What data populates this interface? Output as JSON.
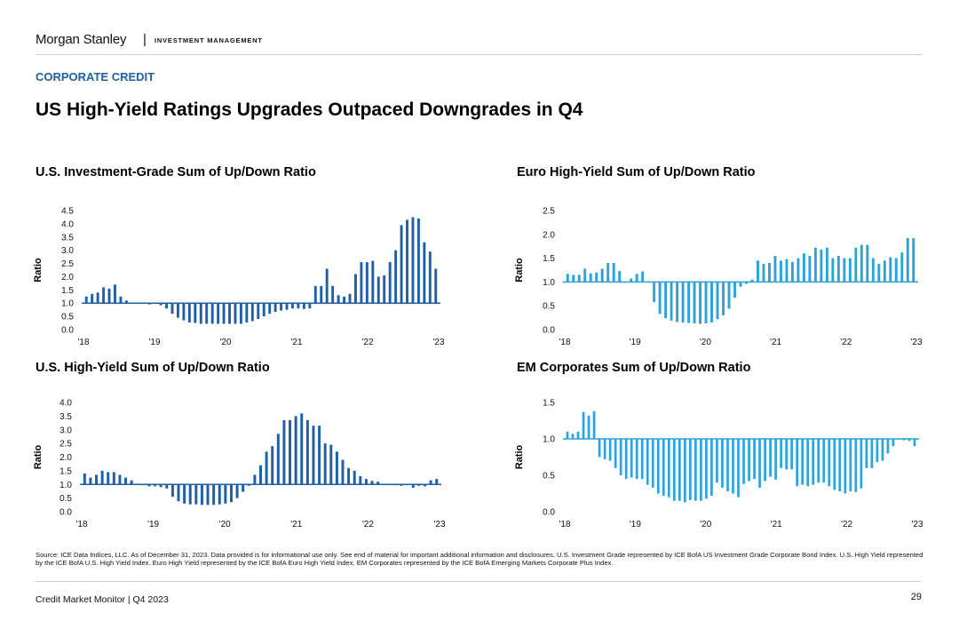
{
  "header": {
    "brand": "Morgan Stanley",
    "separator": "|",
    "division": "INVESTMENT MANAGEMENT"
  },
  "section_label": "CORPORATE CREDIT",
  "page_title": "US High-Yield Ratings Upgrades Outpaced Downgrades in Q4",
  "footer": {
    "source": "Source: ICE Data Indices, LLC. As of December 31, 2023. Data provided is for informational use only. See end of material for important additional information and disclosures. U.S. Investment Grade represented by ICE BofA US Investment Grade Corporate Bond Index. U.S. High Yield represented by the ICE BofA U.S. High Yield Index. Euro High Yield represented by the ICE BofA Euro High Yield Index. EM Corporates represented by the ICE BofA Emerging Markets Corporate Plus Index.",
    "publication": "Credit Market Monitor | Q4 2023",
    "page_number": "29"
  },
  "chart_data": [
    {
      "id": "ig",
      "type": "bar",
      "title": "U.S. Investment-Grade Sum of Up/Down Ratio",
      "ylabel": "Ratio",
      "xlabel": "",
      "baseline": 1.0,
      "ylim": [
        0,
        4.5
      ],
      "yticks": [
        "0.0",
        "0.5",
        "1.0",
        "1.5",
        "2.0",
        "2.5",
        "3.0",
        "3.5",
        "4.0",
        "4.5"
      ],
      "xticks": [
        "'18",
        "'19",
        "'20",
        "'21",
        "'22",
        "'23"
      ],
      "color": "#1f5fa6",
      "values": [
        1.25,
        1.35,
        1.4,
        1.6,
        1.55,
        1.7,
        1.25,
        1.1,
        1.0,
        1.0,
        1.0,
        0.95,
        1.0,
        0.92,
        0.8,
        0.6,
        0.45,
        0.35,
        0.27,
        0.25,
        0.22,
        0.22,
        0.22,
        0.22,
        0.22,
        0.22,
        0.22,
        0.22,
        0.27,
        0.32,
        0.4,
        0.5,
        0.6,
        0.67,
        0.72,
        0.75,
        0.8,
        0.8,
        0.78,
        0.8,
        1.65,
        1.65,
        2.3,
        1.65,
        1.3,
        1.25,
        1.35,
        2.1,
        2.55,
        2.55,
        2.6,
        2.0,
        2.05,
        2.55,
        3.0,
        3.95,
        4.15,
        4.25,
        4.2,
        3.3,
        2.95,
        2.3
      ]
    },
    {
      "id": "euro",
      "type": "bar",
      "title": "Euro High-Yield Sum of Up/Down Ratio",
      "ylabel": "Ratio",
      "xlabel": "",
      "baseline": 1.0,
      "ylim": [
        0,
        2.5
      ],
      "yticks": [
        "0.0",
        "0.5",
        "1.0",
        "1.5",
        "2.0",
        "2.5"
      ],
      "xticks": [
        "'18",
        "'19",
        "'20",
        "'21",
        "'22",
        "'23"
      ],
      "color": "#2ea3da",
      "values": [
        1.17,
        1.15,
        1.15,
        1.28,
        1.18,
        1.2,
        1.28,
        1.4,
        1.4,
        1.23,
        1.0,
        1.07,
        1.17,
        1.22,
        1.0,
        0.58,
        0.33,
        0.24,
        0.19,
        0.16,
        0.15,
        0.14,
        0.13,
        0.12,
        0.13,
        0.15,
        0.22,
        0.3,
        0.44,
        0.67,
        0.9,
        0.96,
        1.05,
        1.45,
        1.38,
        1.4,
        1.55,
        1.45,
        1.48,
        1.42,
        1.5,
        1.6,
        1.55,
        1.72,
        1.68,
        1.72,
        1.5,
        1.55,
        1.5,
        1.5,
        1.72,
        1.78,
        1.78,
        1.5,
        1.38,
        1.45,
        1.52,
        1.5,
        1.62,
        1.92,
        1.92
      ]
    },
    {
      "id": "hy",
      "type": "bar",
      "title": "U.S. High-Yield Sum of Up/Down Ratio",
      "ylabel": "Ratio",
      "xlabel": "",
      "baseline": 1.0,
      "ylim": [
        0,
        4.0
      ],
      "yticks": [
        "0.0",
        "0.5",
        "1.0",
        "1.5",
        "2.0",
        "2.5",
        "3.0",
        "3.5",
        "4.0"
      ],
      "xticks": [
        "'18",
        "'19",
        "'20",
        "'21",
        "'22",
        "'23"
      ],
      "color": "#1f5fa6",
      "values": [
        1.4,
        1.25,
        1.35,
        1.5,
        1.45,
        1.45,
        1.35,
        1.25,
        1.15,
        1.0,
        0.97,
        0.93,
        0.93,
        0.9,
        0.85,
        0.55,
        0.38,
        0.3,
        0.27,
        0.27,
        0.25,
        0.25,
        0.25,
        0.27,
        0.3,
        0.35,
        0.5,
        0.73,
        0.95,
        1.35,
        1.7,
        2.2,
        2.4,
        2.85,
        3.35,
        3.35,
        3.5,
        3.6,
        3.35,
        3.15,
        3.15,
        2.5,
        2.45,
        2.2,
        1.9,
        1.6,
        1.5,
        1.3,
        1.2,
        1.13,
        1.1,
        1.0,
        1.0,
        0.97,
        0.95,
        0.97,
        0.88,
        0.95,
        0.93,
        1.15,
        1.2
      ]
    },
    {
      "id": "em",
      "type": "bar",
      "title": "EM Corporates Sum of Up/Down Ratio",
      "ylabel": "Ratio",
      "xlabel": "",
      "baseline": 1.0,
      "ylim": [
        0,
        1.5
      ],
      "yticks": [
        "0.0",
        "0.5",
        "1.0",
        "1.5"
      ],
      "xticks": [
        "'18",
        "'19",
        "'20",
        "'21",
        "'22",
        "'23"
      ],
      "color": "#2ea3da",
      "values": [
        1.1,
        1.07,
        1.1,
        1.37,
        1.32,
        1.38,
        0.75,
        0.72,
        0.7,
        0.6,
        0.5,
        0.45,
        0.47,
        0.45,
        0.45,
        0.37,
        0.33,
        0.25,
        0.22,
        0.2,
        0.15,
        0.15,
        0.13,
        0.16,
        0.15,
        0.15,
        0.18,
        0.22,
        0.4,
        0.33,
        0.28,
        0.25,
        0.2,
        0.38,
        0.42,
        0.45,
        0.33,
        0.42,
        0.48,
        0.44,
        0.6,
        0.58,
        0.58,
        0.35,
        0.37,
        0.35,
        0.37,
        0.4,
        0.4,
        0.35,
        0.3,
        0.28,
        0.25,
        0.28,
        0.27,
        0.32,
        0.6,
        0.6,
        0.68,
        0.7,
        0.8,
        0.9,
        1.0,
        0.98,
        0.97,
        0.9
      ]
    }
  ]
}
